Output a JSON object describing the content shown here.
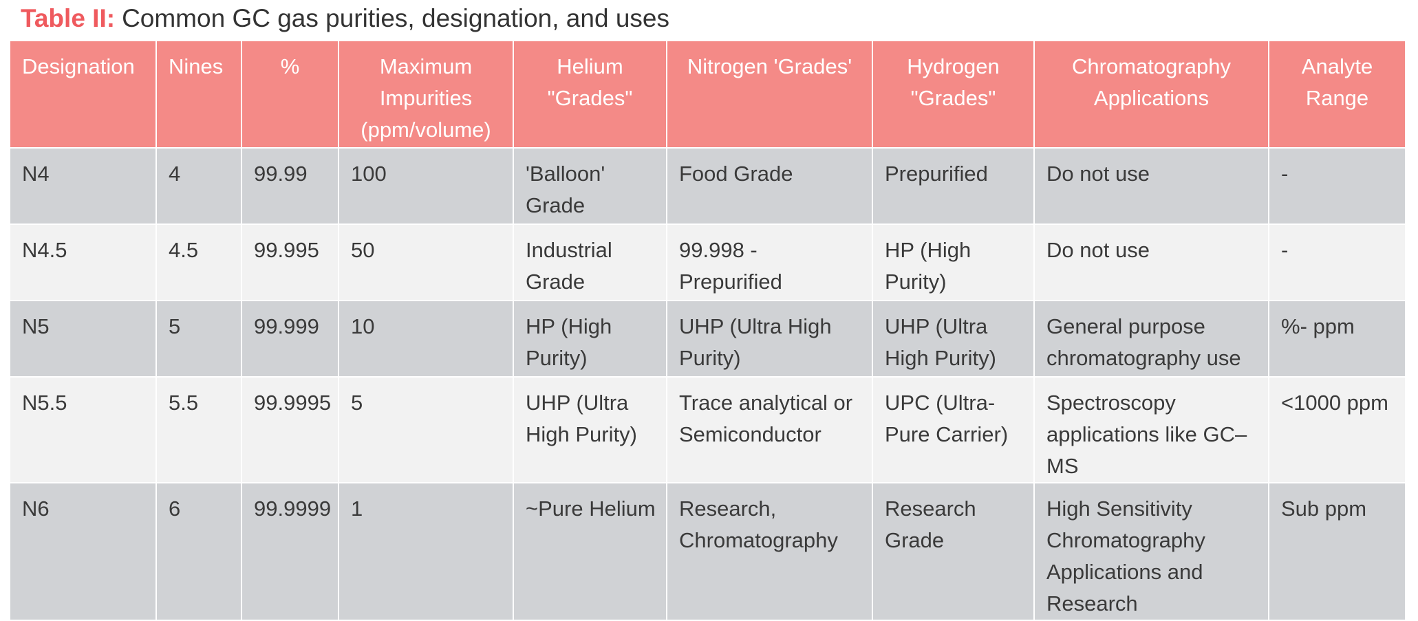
{
  "title": {
    "label": "Table II:",
    "text": "Common GC gas purities, designation, and uses"
  },
  "table": {
    "header": [
      "Designation",
      "Nines",
      "%",
      "Maximum Impurities (ppm/volume)",
      "Helium \"Grades\"",
      "Nitrogen 'Grades'",
      "Hydrogen \"Grades\"",
      "Chromatography Applications",
      "Analyte Range"
    ],
    "rows": [
      [
        "N4",
        "4",
        "99.99",
        "100",
        "'Balloon' Grade",
        "Food Grade",
        "Prepurified",
        "Do not use",
        "-"
      ],
      [
        "N4.5",
        "4.5",
        "99.995",
        "50",
        "Industrial Grade",
        "99.998 - Prepurified",
        "HP (High Purity)",
        "Do not use",
        "-"
      ],
      [
        "N5",
        "5",
        "99.999",
        "10",
        "HP (High Purity)",
        "UHP (Ultra High Purity)",
        "UHP (Ultra High Purity)",
        "General purpose chromatography use",
        "%- ppm"
      ],
      [
        "N5.5",
        "5.5",
        "99.9995",
        "5",
        "UHP (Ultra High Purity)",
        "Trace analytical or Semiconductor",
        "UPC (Ultra-Pure Carrier)",
        "Spectroscopy applications like GC–MS",
        "<1000 ppm"
      ],
      [
        "N6",
        "6",
        "99.9999",
        "1",
        "~Pure Helium",
        "Research, Chromatography",
        "Research Grade",
        "High Sensitivity Chromatography Applications and Research",
        "Sub ppm"
      ]
    ]
  }
}
